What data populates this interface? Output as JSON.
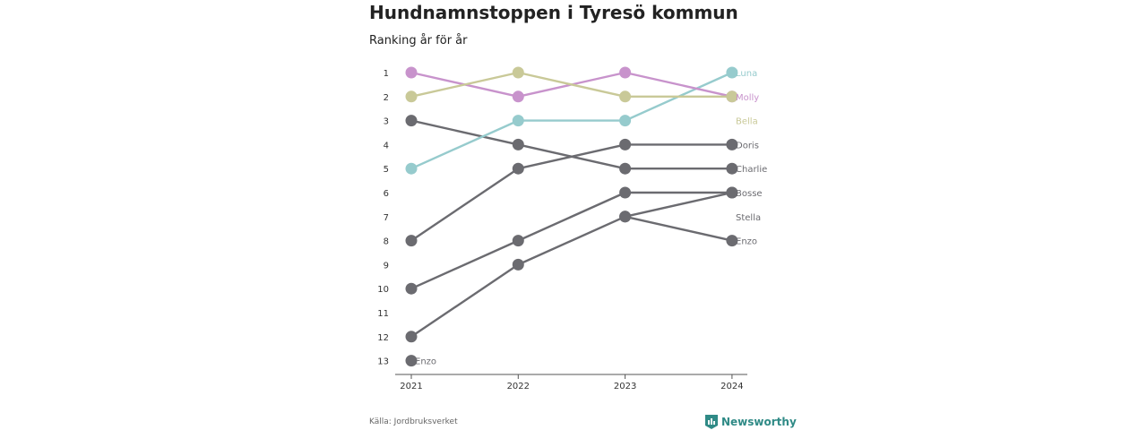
{
  "title": "Hundnamnstoppen i Tyresö kommun",
  "subtitle": "Ranking år för år",
  "source": "Källa: Jordbruksverket",
  "brand": "Newsworthy",
  "colors": {
    "luna": "#96cbcd",
    "molly": "#c893cc",
    "bella": "#c9c998",
    "other": "#6b6b70",
    "brand": "#2f8a86"
  },
  "chart_data": {
    "type": "line",
    "x": [
      "2021",
      "2022",
      "2023",
      "2024"
    ],
    "y_ticks": [
      "1",
      "2",
      "3",
      "4",
      "5",
      "6",
      "7",
      "8",
      "9",
      "10",
      "11",
      "12",
      "13"
    ],
    "ylim": [
      1,
      13
    ],
    "y_reversed": true,
    "series": [
      {
        "name": "Luna",
        "values": [
          5,
          3,
          3,
          1
        ],
        "color": "#96cbcd"
      },
      {
        "name": "Molly",
        "values": [
          1,
          2,
          1,
          2
        ],
        "color": "#c893cc"
      },
      {
        "name": "Bella",
        "values": [
          2,
          1,
          2,
          2
        ],
        "color": "#c9c998"
      },
      {
        "name": "Doris",
        "values": [
          8,
          5,
          4,
          4
        ],
        "color": "#6b6b70"
      },
      {
        "name": "Charlie",
        "values": [
          3,
          4,
          5,
          5
        ],
        "color": "#6b6b70"
      },
      {
        "name": "Bosse",
        "values": [
          12,
          9,
          7,
          6
        ],
        "color": "#6b6b70"
      },
      {
        "name": "Stella",
        "values": [
          10,
          8,
          6,
          6
        ],
        "color": "#6b6b70"
      },
      {
        "name": "Enzo",
        "values": [
          13,
          null,
          7,
          8
        ],
        "color": "#6b6b70"
      }
    ],
    "end_labels": [
      {
        "name": "Luna",
        "rank": 1,
        "color": "#96cbcd"
      },
      {
        "name": "Molly",
        "rank": 2,
        "color": "#c893cc"
      },
      {
        "name": "Bella",
        "rank": 3,
        "color": "#c9c998"
      },
      {
        "name": "Doris",
        "rank": 4,
        "color": "#6b6b70"
      },
      {
        "name": "Charlie",
        "rank": 5,
        "color": "#6b6b70"
      },
      {
        "name": "Bosse",
        "rank": 6,
        "color": "#6b6b70"
      },
      {
        "name": "Stella",
        "rank": 7,
        "color": "#6b6b70"
      },
      {
        "name": "Enzo",
        "rank": 8,
        "color": "#6b6b70"
      }
    ],
    "start_labels": [
      {
        "name": "Enzo",
        "rank": 13,
        "color": "#6b6b70"
      }
    ]
  }
}
